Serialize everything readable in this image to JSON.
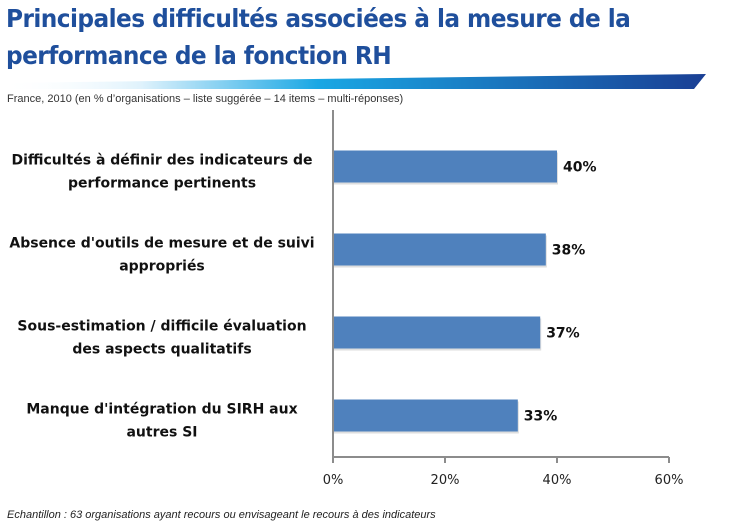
{
  "header": {
    "title_line1": "Principales difficultés associées à la mesure de la",
    "title_line2": "performance de la fonction RH",
    "subtitle": "France, 2010 (en % d’organisations – liste suggérée – 14 items – multi-réponses)"
  },
  "footnote": "Echantillon : 63 organisations ayant recours ou envisageant le recours à des indicateurs",
  "colors": {
    "title": "#1f4f9c",
    "bar": "#4f81bd",
    "axis": "#8c8c8c",
    "band_light": "#dff2fc",
    "band_mid": "#1aa7e4",
    "band_dark": "#1a3f94"
  },
  "chart_data": {
    "type": "bar",
    "orientation": "horizontal",
    "title": "Principales difficultés associées à la mesure de la performance de la fonction RH",
    "xlabel": "",
    "ylabel": "",
    "xlim": [
      0,
      60
    ],
    "ticks": [
      {
        "value": 0,
        "label": "0%"
      },
      {
        "value": 20,
        "label": "20%"
      },
      {
        "value": 40,
        "label": "40%"
      },
      {
        "value": 60,
        "label": "60%"
      }
    ],
    "grid": false,
    "categories": [
      {
        "line1": "Difficultés à définir des indicateurs de",
        "line2": "performance pertinents"
      },
      {
        "line1": "Absence d'outils de mesure et de suivi",
        "line2": "appropriés"
      },
      {
        "line1": "Sous-estimation / difficile évaluation",
        "line2": "des aspects qualitatifs"
      },
      {
        "line1": "Manque d'intégration du SIRH aux",
        "line2": "autres SI"
      }
    ],
    "values": [
      40,
      38,
      37,
      33
    ],
    "value_labels": [
      "40%",
      "38%",
      "37%",
      "33%"
    ]
  }
}
